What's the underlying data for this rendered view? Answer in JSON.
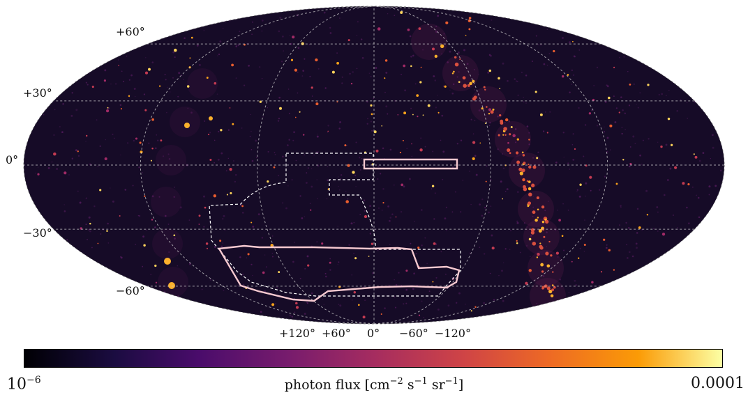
{
  "map": {
    "projection": "mollweide",
    "grid_on": true,
    "lat_labels": [
      "+60°",
      "+30°",
      "0°",
      "−30°",
      "−60°"
    ],
    "lon_labels": [
      "+120°",
      "+60°",
      "0°",
      "−60°",
      "−120°"
    ],
    "colors": {
      "background": "#160b27",
      "grid": "#cfcfcf",
      "outline_pink": "#f6c9d0",
      "outline_white": "#ffffff"
    },
    "regions": [
      {
        "name": "thin-strip-region",
        "style": "solid-pink"
      },
      {
        "name": "southern-region",
        "style": "solid-pink"
      },
      {
        "name": "survey-footprint",
        "style": "dashed-white"
      }
    ]
  },
  "colorbar": {
    "colormap": "inferno",
    "min_label": "10",
    "min_exp": "−6",
    "max_label": "0.0001",
    "title": "photon flux [cm",
    "title_parts": {
      "cm_exp": "−2",
      "s": " s",
      "s_exp": "−1",
      "sr": " sr",
      "sr_exp": "−1",
      "close": "]"
    }
  }
}
